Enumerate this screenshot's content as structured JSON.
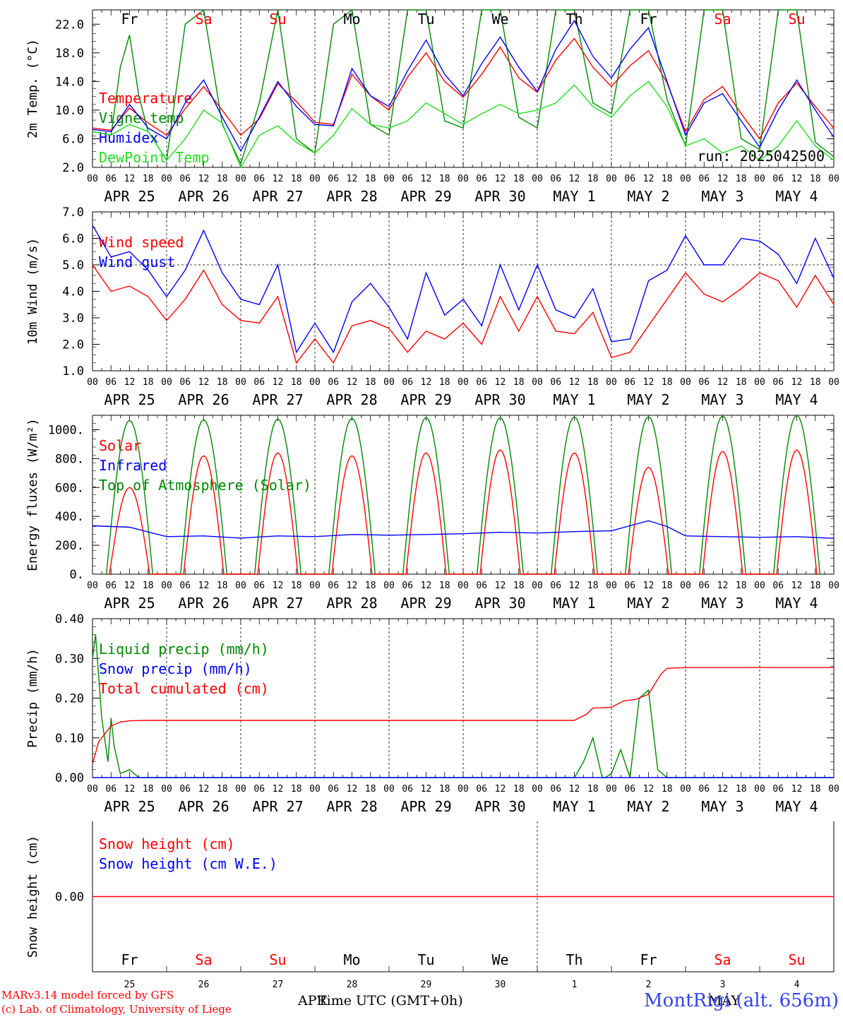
{
  "run_label": "run: 2025042500",
  "footer": {
    "model": "MARv3.14 model forced by GFS",
    "credit": "(c) Lab. of Climatology, University of Liege",
    "time_axis": "Time UTC (GMT+0h)",
    "month_left": "APR",
    "month_right": "MAY",
    "station": "MontRigi (alt. 656m)"
  },
  "hour_ticks": [
    "00",
    "06",
    "12",
    "18"
  ],
  "date_labels": [
    "APR 25",
    "APR 26",
    "APR 27",
    "APR 28",
    "APR 29",
    "APR 30",
    "MAY  1",
    "MAY  2",
    "MAY  3",
    "MAY  4"
  ],
  "day_names": [
    {
      "label": "Fr",
      "color": "#000000"
    },
    {
      "label": "Sa",
      "color": "#ff0000"
    },
    {
      "label": "Su",
      "color": "#ff0000"
    },
    {
      "label": "Mo",
      "color": "#000000"
    },
    {
      "label": "Tu",
      "color": "#000000"
    },
    {
      "label": "We",
      "color": "#000000"
    },
    {
      "label": "Th",
      "color": "#000000"
    },
    {
      "label": "Fr",
      "color": "#000000"
    },
    {
      "label": "Sa",
      "color": "#ff0000"
    },
    {
      "label": "Su",
      "color": "#ff0000"
    }
  ],
  "day_numbers": [
    "25",
    "26",
    "27",
    "28",
    "29",
    "30",
    "1",
    "2",
    "3",
    "4"
  ],
  "colors": {
    "red": "#ff0000",
    "green": "#008800",
    "blue": "#0000ff",
    "lightgreen": "#22dd22"
  },
  "chart_data": [
    {
      "type": "line",
      "ylabel": "2m Temp. (°C)",
      "ylim": [
        2,
        24
      ],
      "yticks": [
        "2.0",
        "6.0",
        "10.0",
        "14.0",
        "18.0",
        "22.0"
      ],
      "x_unit": "hours from 2025-04-25 00 UTC",
      "legend": [
        {
          "name": "Temperature",
          "color": "#ff0000"
        },
        {
          "name": "Vigne temp",
          "color": "#008800"
        },
        {
          "name": "Humidex",
          "color": "#0000ff"
        },
        {
          "name": "DewPoint Temp",
          "color": "#22dd22"
        }
      ],
      "series": [
        {
          "name": "Temperature",
          "color": "#ff0000",
          "x": [
            0,
            6,
            12,
            18,
            24,
            30,
            36,
            42,
            48,
            54,
            60,
            66,
            72,
            78,
            84,
            90,
            96,
            102,
            108,
            114,
            120,
            126,
            132,
            138,
            144,
            150,
            156,
            162,
            168,
            174,
            180,
            186,
            192,
            198,
            204,
            210,
            216,
            222,
            228,
            234,
            240
          ],
          "values": [
            7.5,
            7.2,
            10.3,
            8.2,
            6.5,
            10.2,
            13.3,
            10.0,
            6.5,
            8.8,
            13.7,
            11.2,
            8.3,
            8.0,
            15.0,
            12.0,
            10.0,
            14.6,
            18.0,
            14.0,
            11.8,
            15.0,
            18.8,
            14.5,
            12.5,
            17.0,
            20.0,
            16.0,
            13.3,
            16.2,
            18.3,
            13.8,
            7.0,
            11.5,
            13.3,
            9.5,
            6.0,
            11.0,
            13.8,
            10.5,
            7.5
          ]
        },
        {
          "name": "Vigne temp",
          "color": "#008800",
          "x": [
            0,
            6,
            9,
            12,
            15,
            18,
            24,
            30,
            36,
            42,
            48,
            54,
            60,
            66,
            72,
            78,
            84,
            90,
            96,
            102,
            108,
            114,
            120,
            126,
            132,
            138,
            144,
            150,
            156,
            162,
            168,
            174,
            180,
            186,
            192,
            198,
            204,
            210,
            216,
            222,
            228,
            234,
            240
          ],
          "values": [
            7.0,
            6.5,
            16.0,
            20.5,
            12.0,
            7.0,
            3.0,
            22.0,
            24.0,
            8.0,
            2.5,
            11.0,
            24.0,
            6.0,
            4.0,
            22.0,
            24.0,
            8.0,
            6.5,
            24.0,
            24.0,
            8.5,
            7.5,
            24.0,
            24.0,
            9.0,
            7.5,
            24.0,
            24.0,
            11.0,
            9.5,
            24.0,
            24.0,
            11.5,
            5.0,
            24.0,
            24.0,
            6.0,
            4.5,
            24.0,
            24.0,
            5.5,
            3.5
          ]
        },
        {
          "name": "Humidex",
          "color": "#0000ff",
          "x": [
            0,
            6,
            12,
            18,
            24,
            30,
            36,
            42,
            48,
            54,
            60,
            66,
            72,
            78,
            84,
            90,
            96,
            102,
            108,
            114,
            120,
            126,
            132,
            138,
            144,
            150,
            156,
            162,
            168,
            174,
            180,
            186,
            192,
            198,
            204,
            210,
            216,
            222,
            228,
            234,
            240
          ],
          "values": [
            7.3,
            7.0,
            10.8,
            7.5,
            6.0,
            11.0,
            14.2,
            9.0,
            4.3,
            9.0,
            14.0,
            10.5,
            8.0,
            7.8,
            15.8,
            12.0,
            10.5,
            15.5,
            19.8,
            15.0,
            12.0,
            16.5,
            20.2,
            16.0,
            12.6,
            18.5,
            22.5,
            17.5,
            14.5,
            18.5,
            21.5,
            14.0,
            6.5,
            11.0,
            12.3,
            8.5,
            4.8,
            10.0,
            14.2,
            10.0,
            6.2
          ]
        },
        {
          "name": "DewPoint Temp",
          "color": "#22dd22",
          "x": [
            0,
            6,
            12,
            18,
            24,
            30,
            36,
            42,
            48,
            54,
            60,
            66,
            72,
            78,
            84,
            90,
            96,
            102,
            108,
            114,
            120,
            126,
            132,
            138,
            144,
            150,
            156,
            162,
            168,
            174,
            180,
            186,
            192,
            198,
            204,
            210,
            216,
            222,
            228,
            234,
            240
          ],
          "values": [
            7.0,
            6.5,
            8.0,
            7.0,
            3.0,
            6.0,
            10.0,
            8.2,
            2.0,
            6.5,
            7.8,
            5.5,
            4.0,
            6.5,
            10.2,
            8.0,
            7.5,
            8.5,
            11.0,
            9.5,
            8.0,
            9.5,
            10.8,
            9.5,
            10.0,
            11.0,
            13.5,
            10.5,
            9.0,
            12.0,
            14.0,
            10.5,
            5.0,
            6.0,
            4.0,
            5.0,
            3.0,
            5.0,
            8.5,
            5.0,
            3.0
          ]
        }
      ]
    },
    {
      "type": "line",
      "ylabel": "10m Wind (m/s)",
      "ylim": [
        1,
        7
      ],
      "yticks": [
        "1.0",
        "2.0",
        "3.0",
        "4.0",
        "5.0",
        "6.0",
        "7.0"
      ],
      "hline": 5.0,
      "legend": [
        {
          "name": "Wind speed",
          "color": "#ff0000"
        },
        {
          "name": "Wind gust",
          "color": "#0000ff"
        }
      ],
      "series": [
        {
          "name": "Wind speed",
          "color": "#ff0000",
          "x": [
            0,
            6,
            12,
            18,
            24,
            30,
            36,
            42,
            48,
            54,
            60,
            66,
            72,
            78,
            84,
            90,
            96,
            102,
            108,
            114,
            120,
            126,
            132,
            138,
            144,
            150,
            156,
            162,
            168,
            174,
            180,
            186,
            192,
            198,
            204,
            210,
            216,
            222,
            228,
            234,
            240
          ],
          "values": [
            5.0,
            4.0,
            4.2,
            3.8,
            2.9,
            3.7,
            4.8,
            3.5,
            2.9,
            2.8,
            3.8,
            1.3,
            2.2,
            1.3,
            2.7,
            2.9,
            2.6,
            1.7,
            2.5,
            2.2,
            2.8,
            2.0,
            3.8,
            2.5,
            3.8,
            2.5,
            2.4,
            3.2,
            1.5,
            1.7,
            2.7,
            3.7,
            4.7,
            3.9,
            3.6,
            4.1,
            4.7,
            4.4,
            3.4,
            4.6,
            3.5
          ]
        },
        {
          "name": "Wind gust",
          "color": "#0000ff",
          "x": [
            0,
            6,
            12,
            18,
            24,
            30,
            36,
            42,
            48,
            54,
            60,
            66,
            72,
            78,
            84,
            90,
            96,
            102,
            108,
            114,
            120,
            126,
            132,
            138,
            144,
            150,
            156,
            162,
            168,
            174,
            180,
            186,
            192,
            198,
            204,
            210,
            216,
            222,
            228,
            234,
            240
          ],
          "values": [
            6.5,
            5.3,
            5.5,
            4.8,
            3.8,
            4.8,
            6.3,
            4.7,
            3.7,
            3.5,
            5.0,
            1.7,
            2.8,
            1.7,
            3.6,
            4.3,
            3.4,
            2.2,
            4.7,
            3.1,
            3.7,
            2.7,
            5.0,
            3.3,
            5.0,
            3.3,
            3.0,
            4.1,
            2.1,
            2.2,
            4.4,
            4.8,
            6.1,
            5.0,
            5.0,
            6.0,
            5.9,
            5.4,
            4.3,
            6.0,
            4.5
          ]
        }
      ]
    },
    {
      "type": "line",
      "ylabel": "Energy fluxes (W/m²)",
      "ylim": [
        0,
        1100
      ],
      "yticks": [
        "0.",
        "200.",
        "400.",
        "600.",
        "800.",
        "1000."
      ],
      "legend": [
        {
          "name": "Solar",
          "color": "#ff0000"
        },
        {
          "name": "Infrared",
          "color": "#0000ff"
        },
        {
          "name": "Top of Atmosphere (Solar)",
          "color": "#008800"
        }
      ],
      "series": [
        {
          "name": "Top of Atmosphere (Solar)",
          "color": "#008800",
          "peaks": [
            1065,
            1070,
            1075,
            1080,
            1085,
            1085,
            1090,
            1090,
            1095,
            1100
          ]
        },
        {
          "name": "Solar",
          "color": "#ff0000",
          "peaks": [
            600,
            820,
            840,
            820,
            840,
            860,
            840,
            740,
            850,
            860
          ]
        },
        {
          "name": "Infrared",
          "color": "#0000ff",
          "x": [
            0,
            12,
            24,
            36,
            48,
            60,
            72,
            84,
            96,
            108,
            120,
            132,
            144,
            156,
            168,
            180,
            186,
            192,
            204,
            216,
            228,
            240
          ],
          "values": [
            335,
            325,
            260,
            265,
            250,
            265,
            260,
            275,
            270,
            275,
            280,
            290,
            285,
            295,
            300,
            370,
            330,
            265,
            260,
            255,
            260,
            248
          ]
        }
      ]
    },
    {
      "type": "line",
      "ylabel": "Precip (mm/h)",
      "ylim": [
        0,
        0.4
      ],
      "yticks": [
        "0.00",
        "0.10",
        "0.20",
        "0.30",
        "0.40"
      ],
      "legend": [
        {
          "name": "Liquid precip (mm/h)",
          "color": "#008800"
        },
        {
          "name": "Snow precip (mm/h)",
          "color": "#0000ff"
        },
        {
          "name": "Total cumulated (cm)",
          "color": "#ff0000"
        }
      ],
      "series": [
        {
          "name": "Liquid precip (mm/h)",
          "color": "#008800",
          "x": [
            0,
            1,
            3,
            5,
            6,
            7,
            9,
            12,
            15,
            18,
            24,
            156,
            159,
            162,
            165,
            166,
            168,
            171,
            174,
            177,
            180,
            183,
            186,
            192,
            240
          ],
          "values": [
            0.3,
            0.36,
            0.15,
            0.04,
            0.15,
            0.08,
            0.01,
            0.02,
            0.0,
            0.0,
            0.0,
            0.0,
            0.04,
            0.1,
            0.0,
            0.0,
            0.01,
            0.07,
            0.0,
            0.2,
            0.22,
            0.02,
            0.0,
            0.0,
            0.0
          ]
        },
        {
          "name": "Snow precip (mm/h)",
          "color": "#0000ff",
          "x": [
            0,
            240
          ],
          "values": [
            0.0,
            0.0
          ]
        },
        {
          "name": "Total cumulated (cm)",
          "color": "#ff0000",
          "x": [
            0,
            2,
            4,
            6,
            9,
            12,
            18,
            156,
            160,
            162,
            168,
            172,
            176,
            180,
            184,
            186,
            192,
            240
          ],
          "values": [
            0.035,
            0.09,
            0.11,
            0.13,
            0.14,
            0.143,
            0.144,
            0.144,
            0.16,
            0.175,
            0.177,
            0.193,
            0.197,
            0.21,
            0.26,
            0.275,
            0.277,
            0.277
          ]
        }
      ]
    },
    {
      "type": "line",
      "ylabel": "Snow height (cm)",
      "ylim": [
        -1,
        1
      ],
      "yticks": [
        "0.00"
      ],
      "legend": [
        {
          "name": "Snow height (cm)",
          "color": "#ff0000"
        },
        {
          "name": "Snow height (cm W.E.)",
          "color": "#0000ff"
        }
      ],
      "series": [
        {
          "name": "Snow height (cm)",
          "color": "#ff0000",
          "x": [
            0,
            240
          ],
          "values": [
            0,
            0
          ]
        }
      ]
    }
  ]
}
